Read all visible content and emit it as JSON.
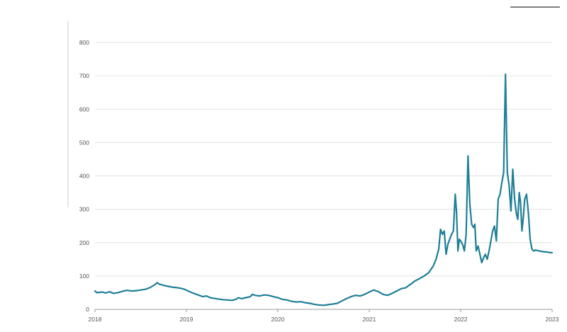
{
  "chart_data": {
    "type": "line",
    "title": "",
    "xlabel": "",
    "ylabel": "",
    "xlim": [
      2018,
      2023
    ],
    "ylim": [
      0,
      800
    ],
    "x_ticks": [
      2018,
      2019,
      2020,
      2021,
      2022,
      2023
    ],
    "x_tick_labels": [
      "2018",
      "2019",
      "2020",
      "2021",
      "2022",
      "2023"
    ],
    "y_ticks": [
      0,
      100,
      200,
      300,
      400,
      500,
      600,
      700,
      800
    ],
    "y_tick_labels": [
      "0",
      "100",
      "200",
      "300",
      "400",
      "500",
      "600",
      "700",
      "800"
    ],
    "grid": true,
    "legend": "none",
    "series": [
      {
        "color": "#1f7f97",
        "x": [
          2018.0,
          2018.02,
          2018.05,
          2018.08,
          2018.12,
          2018.16,
          2018.2,
          2018.25,
          2018.3,
          2018.35,
          2018.4,
          2018.45,
          2018.5,
          2018.55,
          2018.6,
          2018.63,
          2018.66,
          2018.68,
          2018.7,
          2018.72,
          2018.75,
          2018.78,
          2018.82,
          2018.86,
          2018.9,
          2018.94,
          2018.98,
          2019.02,
          2019.06,
          2019.1,
          2019.14,
          2019.18,
          2019.22,
          2019.26,
          2019.3,
          2019.35,
          2019.4,
          2019.45,
          2019.5,
          2019.54,
          2019.57,
          2019.6,
          2019.65,
          2019.7,
          2019.72,
          2019.75,
          2019.8,
          2019.85,
          2019.9,
          2019.95,
          2020.0,
          2020.05,
          2020.1,
          2020.15,
          2020.2,
          2020.25,
          2020.3,
          2020.35,
          2020.4,
          2020.45,
          2020.5,
          2020.55,
          2020.6,
          2020.65,
          2020.7,
          2020.75,
          2020.8,
          2020.85,
          2020.9,
          2020.95,
          2021.0,
          2021.05,
          2021.1,
          2021.15,
          2021.2,
          2021.25,
          2021.3,
          2021.35,
          2021.4,
          2021.45,
          2021.5,
          2021.55,
          2021.6,
          2021.65,
          2021.7,
          2021.73,
          2021.76,
          2021.78,
          2021.8,
          2021.82,
          2021.84,
          2021.86,
          2021.88,
          2021.9,
          2021.92,
          2021.94,
          2021.955,
          2021.97,
          2021.985,
          2022.0,
          2022.02,
          2022.04,
          2022.06,
          2022.08,
          2022.1,
          2022.12,
          2022.14,
          2022.155,
          2022.17,
          2022.19,
          2022.21,
          2022.23,
          2022.25,
          2022.27,
          2022.29,
          2022.31,
          2022.33,
          2022.35,
          2022.37,
          2022.39,
          2022.41,
          2022.43,
          2022.45,
          2022.47,
          2022.49,
          2022.51,
          2022.53,
          2022.55,
          2022.57,
          2022.59,
          2022.61,
          2022.625,
          2022.64,
          2022.655,
          2022.67,
          2022.685,
          2022.7,
          2022.72,
          2022.74,
          2022.76,
          2022.78,
          2022.8,
          2022.82,
          2022.84,
          2022.86,
          2022.88,
          2022.9,
          2022.92,
          2022.94,
          2022.96,
          2022.98,
          2023.0
        ],
        "y": [
          55,
          50,
          51,
          52,
          49,
          53,
          48,
          50,
          54,
          57,
          55,
          56,
          58,
          60,
          65,
          70,
          75,
          80,
          76,
          74,
          72,
          70,
          68,
          66,
          65,
          63,
          60,
          55,
          50,
          46,
          42,
          38,
          40,
          35,
          33,
          31,
          29,
          28,
          27,
          30,
          35,
          32,
          35,
          38,
          45,
          42,
          40,
          43,
          42,
          38,
          35,
          30,
          28,
          24,
          22,
          23,
          20,
          18,
          15,
          13,
          12,
          14,
          16,
          18,
          25,
          32,
          38,
          42,
          40,
          45,
          52,
          58,
          53,
          45,
          42,
          48,
          55,
          62,
          65,
          75,
          85,
          92,
          100,
          110,
          130,
          150,
          180,
          240,
          225,
          235,
          165,
          195,
          210,
          225,
          235,
          345,
          290,
          175,
          210,
          205,
          195,
          175,
          225,
          460,
          315,
          255,
          245,
          255,
          175,
          190,
          165,
          140,
          155,
          165,
          150,
          175,
          205,
          235,
          250,
          205,
          330,
          345,
          380,
          410,
          705,
          410,
          370,
          295,
          420,
          330,
          285,
          270,
          350,
          320,
          235,
          275,
          330,
          345,
          290,
          210,
          180,
          175,
          178,
          176,
          175,
          174,
          173,
          172,
          172,
          171,
          170,
          170
        ]
      }
    ]
  }
}
